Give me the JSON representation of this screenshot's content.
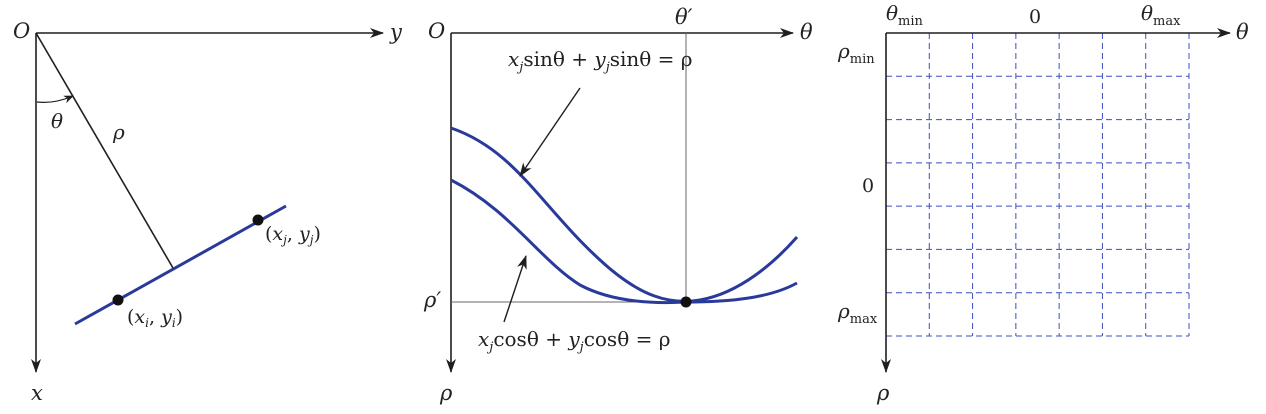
{
  "colors": {
    "ink": "#1f1f1f",
    "curve": "#2a3a9a",
    "grid": "#3b4fc4",
    "guide": "#6a6a6a"
  },
  "panel1": {
    "origin": "O",
    "x_axis": "x",
    "y_axis": "y",
    "theta": "θ",
    "rho": "ρ",
    "point_i": {
      "x": "x",
      "xs": "i",
      "y": "y",
      "ys": "i"
    },
    "point_j": {
      "x": "x",
      "xs": "j",
      "y": "y",
      "ys": "j"
    }
  },
  "panel2": {
    "origin": "O",
    "theta_axis": "θ",
    "rho_axis": "ρ",
    "theta_prime": "θ′",
    "rho_prime": "ρ′",
    "eq_sin": {
      "x": "x",
      "xs": "j",
      "mid": "sinθ + ",
      "y": "y",
      "ys": "j",
      "end": "sinθ = ρ"
    },
    "eq_cos": {
      "x": "x",
      "xs": "j",
      "mid": "cosθ + ",
      "y": "y",
      "ys": "j",
      "end": "cosθ = ρ"
    }
  },
  "panel3": {
    "theta_axis": "θ",
    "rho_axis": "ρ",
    "theta_min": {
      "base": "θ",
      "sub": "min"
    },
    "theta_zero": "0",
    "theta_max": {
      "base": "θ",
      "sub": "max"
    },
    "rho_min": {
      "base": "ρ",
      "sub": "min"
    },
    "rho_zero": "0",
    "rho_max": {
      "base": "ρ",
      "sub": "max"
    }
  }
}
